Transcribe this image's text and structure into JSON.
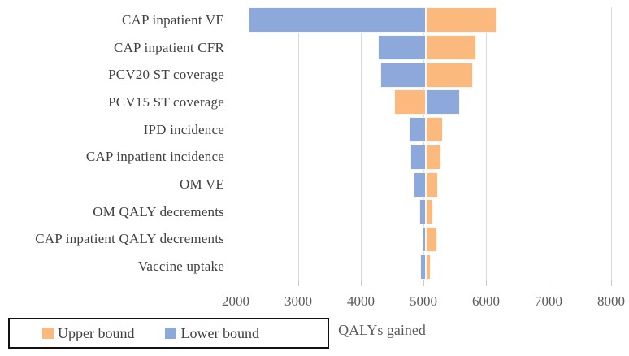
{
  "chart_data": {
    "type": "bar",
    "variant": "tornado",
    "title": "",
    "xlabel": "QALYs gained",
    "x_min": 2000,
    "x_max": 8000,
    "x_ticks": [
      2000,
      3000,
      4000,
      5000,
      6000,
      7000,
      8000
    ],
    "base_case": 5040,
    "grid": true,
    "legend_position": "bottom-left",
    "categories": [
      "CAP inpatient VE",
      "CAP inpatient CFR",
      "PCV20 ST coverage",
      "PCV15 ST coverage",
      "IPD incidence",
      "CAP inpatient incidence",
      "OM VE",
      "OM QALY decrements",
      "CAP inpatient QALY decrements",
      "Vaccine uptake"
    ],
    "series": [
      {
        "name": "Upper bound",
        "color": "#FBB97E",
        "values": [
          6170,
          5840,
          5790,
          4530,
          5310,
          5290,
          5230,
          5160,
          5220,
          5120
        ]
      },
      {
        "name": "Lower bound",
        "color": "#8DA9DC",
        "values": [
          2210,
          4270,
          4310,
          5580,
          4760,
          4790,
          4840,
          4930,
          4985,
          4950
        ]
      }
    ],
    "colors": {
      "gridline": "#D9D9D9",
      "tick": "#C9C9C9",
      "category_label": "#404040",
      "tick_label": "#595959",
      "axis_title": "#595959",
      "legend_border": "#111111",
      "legend_text": "#404040"
    }
  }
}
